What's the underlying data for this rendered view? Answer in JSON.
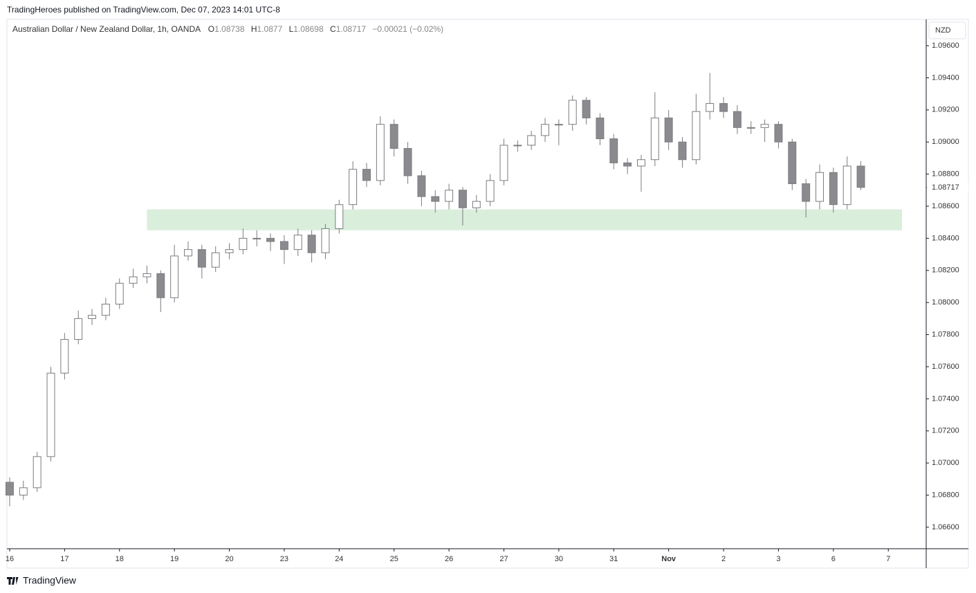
{
  "header": {
    "title": "TradingHeroes published on TradingView.com, Dec 07, 2023 14:01 UTC-8"
  },
  "footer": {
    "brand": "TradingView"
  },
  "chart_data": {
    "type": "candlestick",
    "title": "Australian Dollar / New Zealand Dollar, 1h, OANDA",
    "legend_values": {
      "open_label": "O",
      "open": 1.08738,
      "high_label": "H",
      "high": 1.0877,
      "low_label": "L",
      "low": 1.08698,
      "close_label": "C",
      "close": 1.08717,
      "change": "−0.00021 (−0.02%)"
    },
    "currency": "NZD",
    "last_price": 1.08717,
    "up_color": "#ffffff",
    "down_color": "#8a8a8f",
    "wick_color": "#7b7b80",
    "x": [
      0,
      0.25,
      0.5,
      0.75,
      1,
      1.25,
      1.5,
      1.75,
      2,
      2.25,
      2.5,
      2.75,
      3,
      3.25,
      3.5,
      3.75,
      4,
      4.25,
      4.5,
      4.75,
      5,
      5.25,
      5.5,
      5.75,
      6,
      6.25,
      6.5,
      6.75,
      7,
      7.25,
      7.5,
      7.75,
      8,
      8.25,
      8.5,
      8.75,
      9,
      9.25,
      9.5,
      9.75,
      10,
      10.25,
      10.5,
      10.75,
      11,
      11.25,
      11.5,
      11.75,
      12,
      12.25,
      12.5,
      12.75,
      13,
      13.25,
      13.5,
      13.75,
      14,
      14.25,
      14.5,
      14.75,
      15,
      15.25,
      15.5
    ],
    "open": [
      1.0688,
      1.068,
      1.06846,
      1.0704,
      1.0756,
      1.0777,
      1.079,
      1.0792,
      1.0799,
      1.0812,
      1.0816,
      1.0818,
      1.0803,
      1.0829,
      1.0833,
      1.0822,
      1.0831,
      1.0833,
      1.084,
      1.084,
      1.0838,
      1.0833,
      1.0842,
      1.0831,
      1.0846,
      1.0861,
      1.0883,
      1.0876,
      1.0911,
      1.0896,
      1.0879,
      1.0866,
      1.0863,
      1.087,
      1.0859,
      1.0863,
      1.0876,
      1.0898,
      1.0898,
      1.0904,
      1.0911,
      1.0911,
      1.0926,
      1.0915,
      1.0902,
      1.0887,
      1.0885,
      1.0889,
      1.0915,
      1.09,
      1.0889,
      1.0919,
      1.0924,
      1.0919,
      1.0909,
      1.0909,
      1.0911,
      1.09,
      1.0874,
      1.0863,
      1.0881,
      1.0861,
      1.0885
    ],
    "high": [
      1.0691,
      1.0689,
      1.0707,
      1.076,
      1.0781,
      1.0795,
      1.0796,
      1.0803,
      1.0815,
      1.0821,
      1.0823,
      1.082,
      1.0836,
      1.0838,
      1.0836,
      1.0835,
      1.0837,
      1.0846,
      1.0845,
      1.0843,
      1.0842,
      1.0846,
      1.0845,
      1.0849,
      1.0864,
      1.0888,
      1.0887,
      1.0916,
      1.0914,
      1.09,
      1.0882,
      1.087,
      1.0874,
      1.0872,
      1.0867,
      1.088,
      1.0902,
      1.0901,
      1.0907,
      1.0915,
      1.0914,
      1.0929,
      1.0928,
      1.0918,
      1.0905,
      1.089,
      1.0892,
      1.0931,
      1.092,
      1.0903,
      1.093,
      1.0943,
      1.0928,
      1.0923,
      1.0913,
      1.0914,
      1.0913,
      1.0902,
      1.0877,
      1.0886,
      1.0884,
      1.0891,
      1.0888
    ],
    "low": [
      1.0673,
      1.0677,
      1.0682,
      1.0701,
      1.0752,
      1.0774,
      1.0786,
      1.0789,
      1.0796,
      1.0809,
      1.0812,
      1.0794,
      1.08,
      1.0826,
      1.0815,
      1.0819,
      1.0827,
      1.083,
      1.0835,
      1.0832,
      1.0824,
      1.0829,
      1.0825,
      1.0827,
      1.0843,
      1.0858,
      1.0872,
      1.0873,
      1.0891,
      1.0874,
      1.086,
      1.0856,
      1.0858,
      1.0848,
      1.0856,
      1.086,
      1.0873,
      1.0894,
      1.0895,
      1.09,
      1.0898,
      1.0907,
      1.0911,
      1.0898,
      1.0883,
      1.088,
      1.0869,
      1.0885,
      1.0895,
      1.0884,
      1.0886,
      1.0914,
      1.0915,
      1.0905,
      1.0905,
      1.09,
      1.0896,
      1.087,
      1.0853,
      1.0858,
      1.0856,
      1.0858,
      1.087
    ],
    "close": [
      1.068,
      1.06846,
      1.0704,
      1.0756,
      1.0777,
      1.079,
      1.0792,
      1.0799,
      1.0812,
      1.0816,
      1.0818,
      1.0803,
      1.0829,
      1.0833,
      1.0822,
      1.0831,
      1.0833,
      1.084,
      1.084,
      1.0838,
      1.0833,
      1.0842,
      1.0831,
      1.0846,
      1.0861,
      1.0883,
      1.0876,
      1.0911,
      1.0896,
      1.0879,
      1.0866,
      1.0863,
      1.087,
      1.0859,
      1.0863,
      1.0876,
      1.0898,
      1.0898,
      1.0904,
      1.0911,
      1.0911,
      1.0926,
      1.0915,
      1.0902,
      1.0887,
      1.0885,
      1.0889,
      1.0915,
      1.09,
      1.0889,
      1.0919,
      1.0924,
      1.0919,
      1.0909,
      1.0909,
      1.0911,
      1.09,
      1.0874,
      1.0863,
      1.0881,
      1.0861,
      1.0885,
      1.08717
    ],
    "zone": {
      "x": [
        2.5,
        16.25
      ],
      "y": [
        1.0845,
        1.0858
      ],
      "color": "#d9eedb"
    },
    "xlim": [
      -0.05,
      16.69
    ],
    "ylim": [
      1.06466,
      1.09764
    ],
    "xticks": [
      {
        "value": 0,
        "label": "16"
      },
      {
        "value": 1,
        "label": "17"
      },
      {
        "value": 2,
        "label": "18"
      },
      {
        "value": 3,
        "label": "19"
      },
      {
        "value": 4,
        "label": "20"
      },
      {
        "value": 5,
        "label": "23"
      },
      {
        "value": 6,
        "label": "24"
      },
      {
        "value": 7,
        "label": "25"
      },
      {
        "value": 8,
        "label": "26"
      },
      {
        "value": 9,
        "label": "27"
      },
      {
        "value": 10,
        "label": "30"
      },
      {
        "value": 11,
        "label": "31"
      },
      {
        "value": 12,
        "label": "Nov",
        "bold": true
      },
      {
        "value": 13,
        "label": "2"
      },
      {
        "value": 14,
        "label": "3"
      },
      {
        "value": 15,
        "label": "6"
      },
      {
        "value": 16,
        "label": "7"
      }
    ],
    "yticks": [
      {
        "value": 1.066,
        "label": "1.06600"
      },
      {
        "value": 1.068,
        "label": "1.06800"
      },
      {
        "value": 1.07,
        "label": "1.07000"
      },
      {
        "value": 1.072,
        "label": "1.07200"
      },
      {
        "value": 1.074,
        "label": "1.07400"
      },
      {
        "value": 1.076,
        "label": "1.07600"
      },
      {
        "value": 1.078,
        "label": "1.07800"
      },
      {
        "value": 1.08,
        "label": "1.08000"
      },
      {
        "value": 1.082,
        "label": "1.08200"
      },
      {
        "value": 1.084,
        "label": "1.08400"
      },
      {
        "value": 1.086,
        "label": "1.08600"
      },
      {
        "value": 1.088,
        "label": "1.08800"
      },
      {
        "value": 1.09,
        "label": "1.09000"
      },
      {
        "value": 1.092,
        "label": "1.09200"
      },
      {
        "value": 1.094,
        "label": "1.09400"
      },
      {
        "value": 1.096,
        "label": "1.09600"
      }
    ]
  }
}
